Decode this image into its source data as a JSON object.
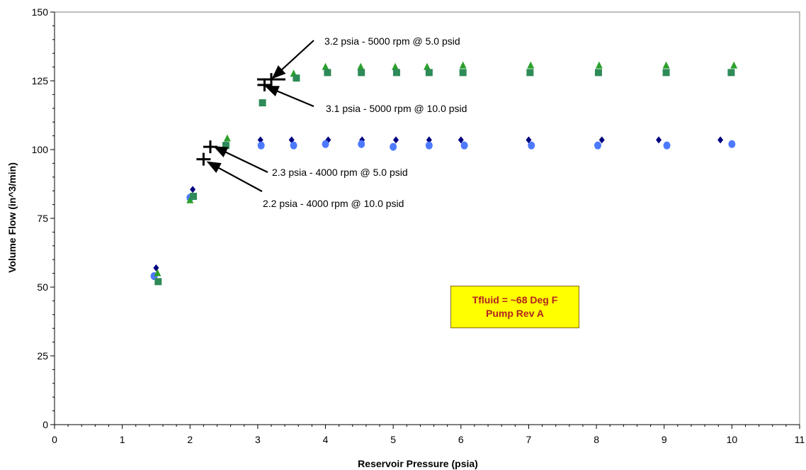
{
  "chart_data": {
    "type": "scatter",
    "title": "",
    "xlabel": "Reservoir Pressure (psia)",
    "ylabel": "Volume Flow (in^3/min)",
    "xlim": [
      0,
      11
    ],
    "ylim": [
      0,
      150
    ],
    "xticks": [
      0,
      1,
      2,
      3,
      4,
      5,
      6,
      7,
      8,
      9,
      10,
      11
    ],
    "yticks": [
      0,
      25,
      50,
      75,
      100,
      125,
      150
    ],
    "grid": true,
    "series": [
      {
        "marker": "diamond",
        "color": "#00007f",
        "x": [
          1.5,
          2.04,
          3.04,
          3.5,
          4.04,
          4.54,
          5.04,
          5.53,
          6.0,
          7.0,
          8.08,
          8.92,
          9.83
        ],
        "y": [
          57,
          85.5,
          103.5,
          103.5,
          103.5,
          103.5,
          103.5,
          103.5,
          103.5,
          103.5,
          103.5,
          103.5,
          103.5
        ]
      },
      {
        "marker": "circle",
        "color": "#4d79ff",
        "x": [
          1.47,
          2.0,
          2.53,
          3.05,
          3.53,
          4.0,
          4.53,
          5.0,
          5.53,
          6.05,
          7.04,
          8.02,
          9.04,
          10.0
        ],
        "y": [
          54,
          82.5,
          101.5,
          101.5,
          101.5,
          102,
          102,
          101,
          101.5,
          101.5,
          101.5,
          101.5,
          101.5,
          102
        ]
      },
      {
        "marker": "triangle",
        "color": "#2ca02c",
        "x": [
          1.52,
          2.0,
          2.55,
          3.53,
          4.0,
          4.52,
          5.03,
          5.5,
          6.03,
          7.03,
          8.04,
          9.03,
          10.03
        ],
        "y": [
          55,
          81.5,
          104,
          127.5,
          130,
          130,
          130,
          130,
          130.5,
          130.5,
          130.5,
          130.5,
          130.5
        ]
      },
      {
        "marker": "square",
        "color": "#2e8b57",
        "x": [
          1.53,
          2.05,
          2.53,
          3.07,
          3.57,
          4.03,
          4.53,
          5.05,
          5.53,
          6.03,
          7.02,
          8.03,
          9.03,
          9.99
        ],
        "y": [
          52,
          83,
          101.5,
          117,
          126,
          128,
          128,
          128,
          128,
          128,
          128,
          128,
          128,
          128
        ]
      }
    ],
    "crosshairs": [
      {
        "x": 3.2,
        "y": 125.5,
        "label": "3.2 psia - 5000 rpm @ 5.0 psid"
      },
      {
        "x": 3.1,
        "y": 123.5,
        "label": "3.1 psia - 5000 rpm @ 10.0 psid"
      },
      {
        "x": 2.3,
        "y": 101,
        "label": "2.3 psia - 4000 rpm @ 5.0 psid"
      },
      {
        "x": 2.2,
        "y": 96.5,
        "label": "2.2 psia - 4000 rpm @ 10.0 psid"
      }
    ],
    "infobox": {
      "line1": "Tfluid = ~68 Deg F",
      "line2": "Pump Rev A",
      "background": "#ffff00",
      "text_color": "#b22222"
    },
    "grid_color": "#f0a030"
  }
}
